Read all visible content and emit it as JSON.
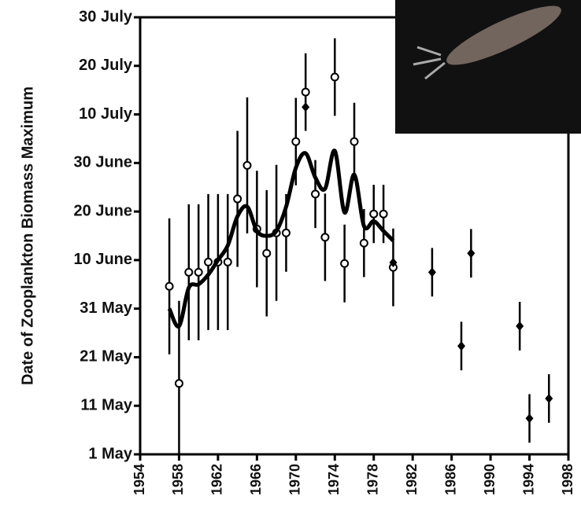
{
  "chart_data": {
    "type": "scatter",
    "y_label": "Date of Zooplankton Biomass Maximum",
    "xlim": [
      1954,
      1998
    ],
    "xticks": [
      1954,
      1958,
      1962,
      1966,
      1970,
      1974,
      1978,
      1982,
      1986,
      1990,
      1994,
      1998
    ],
    "ylim": [
      121,
      211
    ],
    "yticks": [
      {
        "value": 121,
        "label": "1 May"
      },
      {
        "value": 131,
        "label": "11 May"
      },
      {
        "value": 141,
        "label": "21 May"
      },
      {
        "value": 151,
        "label": "31 May"
      },
      {
        "value": 161,
        "label": "10 June"
      },
      {
        "value": 171,
        "label": "20 June"
      },
      {
        "value": 181,
        "label": "30 June"
      },
      {
        "value": 191,
        "label": "10 July"
      },
      {
        "value": 201,
        "label": "20 July"
      },
      {
        "value": 211,
        "label": "30 July"
      }
    ],
    "series": [
      {
        "marker": "circle-open",
        "color": "#000000",
        "x": [
          1957,
          1958,
          1959,
          1960,
          1961,
          1962,
          1963,
          1964,
          1965,
          1966,
          1967,
          1968,
          1969,
          1970,
          1971,
          1972,
          1973,
          1974,
          1975,
          1976,
          1977,
          1978,
          1979,
          1980
        ],
        "values": [
          155.6,
          135.6,
          158.5,
          158.5,
          160.6,
          160.6,
          160.6,
          173.6,
          180.5,
          167.4,
          162.4,
          166.6,
          166.6,
          185.4,
          195.6,
          174.6,
          165.7,
          198.7,
          160.3,
          185.4,
          164.5,
          170.5,
          170.5,
          159.5
        ],
        "errors": [
          14,
          17,
          14,
          14,
          14,
          14,
          14,
          14,
          14,
          12,
          13,
          14,
          8,
          9,
          8,
          7,
          9,
          8,
          8,
          8,
          7,
          6,
          6,
          8
        ]
      },
      {
        "marker": "diamond",
        "color": "#000000",
        "x": [
          1971,
          1980,
          1984,
          1987,
          1988,
          1993,
          1994,
          1996
        ],
        "values": [
          192.5,
          160.5,
          158.5,
          143.3,
          162.4,
          147.4,
          128.4,
          132.5
        ],
        "errors": [
          0,
          0,
          5,
          5,
          5,
          5,
          5,
          5
        ]
      },
      {
        "marker": "line",
        "color": "#000000",
        "x": [
          1957,
          1958,
          1959,
          1960,
          1961,
          1962,
          1963,
          1964,
          1965,
          1966,
          1967,
          1968,
          1969,
          1970,
          1971,
          1972,
          1973,
          1974,
          1975,
          1976,
          1977,
          1978,
          1979,
          1980
        ],
        "values": [
          151,
          147.4,
          155.3,
          156,
          158,
          161,
          164,
          170,
          172,
          167,
          166,
          167,
          172,
          180,
          183,
          178,
          175.7,
          183.5,
          170.8,
          178.6,
          168,
          169,
          167,
          165
        ]
      }
    ]
  }
}
